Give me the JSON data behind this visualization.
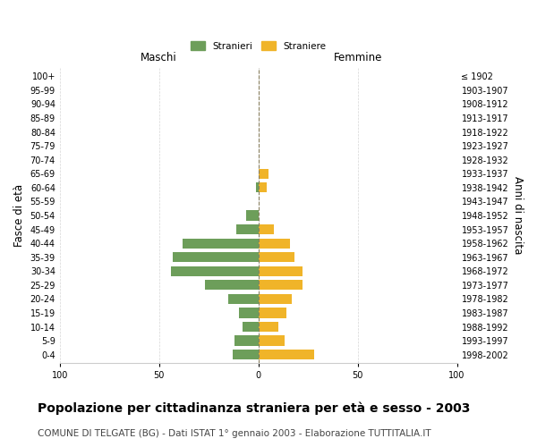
{
  "age_groups": [
    "100+",
    "95-99",
    "90-94",
    "85-89",
    "80-84",
    "75-79",
    "70-74",
    "65-69",
    "60-64",
    "55-59",
    "50-54",
    "45-49",
    "40-44",
    "35-39",
    "30-34",
    "25-29",
    "20-24",
    "15-19",
    "10-14",
    "5-9",
    "0-4"
  ],
  "birth_years": [
    "≤ 1902",
    "1903-1907",
    "1908-1912",
    "1913-1917",
    "1918-1922",
    "1923-1927",
    "1928-1932",
    "1933-1937",
    "1938-1942",
    "1943-1947",
    "1948-1952",
    "1953-1957",
    "1958-1962",
    "1963-1967",
    "1968-1972",
    "1973-1977",
    "1978-1982",
    "1983-1987",
    "1988-1992",
    "1993-1997",
    "1998-2002"
  ],
  "males": [
    0,
    0,
    0,
    0,
    0,
    0,
    0,
    0,
    1,
    0,
    6,
    11,
    38,
    43,
    44,
    27,
    15,
    10,
    8,
    12,
    13
  ],
  "females": [
    0,
    0,
    0,
    0,
    0,
    0,
    0,
    5,
    4,
    0,
    0,
    8,
    16,
    18,
    22,
    22,
    17,
    14,
    10,
    13,
    28
  ],
  "male_color": "#6d9e5a",
  "female_color": "#f0b429",
  "center_line_color": "#8a8060",
  "grid_color": "#cccccc",
  "background_color": "#ffffff",
  "title": "Popolazione per cittadinanza straniera per età e sesso - 2003",
  "subtitle": "COMUNE DI TELGATE (BG) - Dati ISTAT 1° gennaio 2003 - Elaborazione TUTTITALIA.IT",
  "xlabel_left": "Maschi",
  "xlabel_right": "Femmine",
  "ylabel_left": "Fasce di età",
  "ylabel_right": "Anni di nascita",
  "legend_male": "Stranieri",
  "legend_female": "Straniere",
  "xlim": 100,
  "title_fontsize": 10,
  "subtitle_fontsize": 7.5,
  "tick_fontsize": 7,
  "label_fontsize": 8.5
}
